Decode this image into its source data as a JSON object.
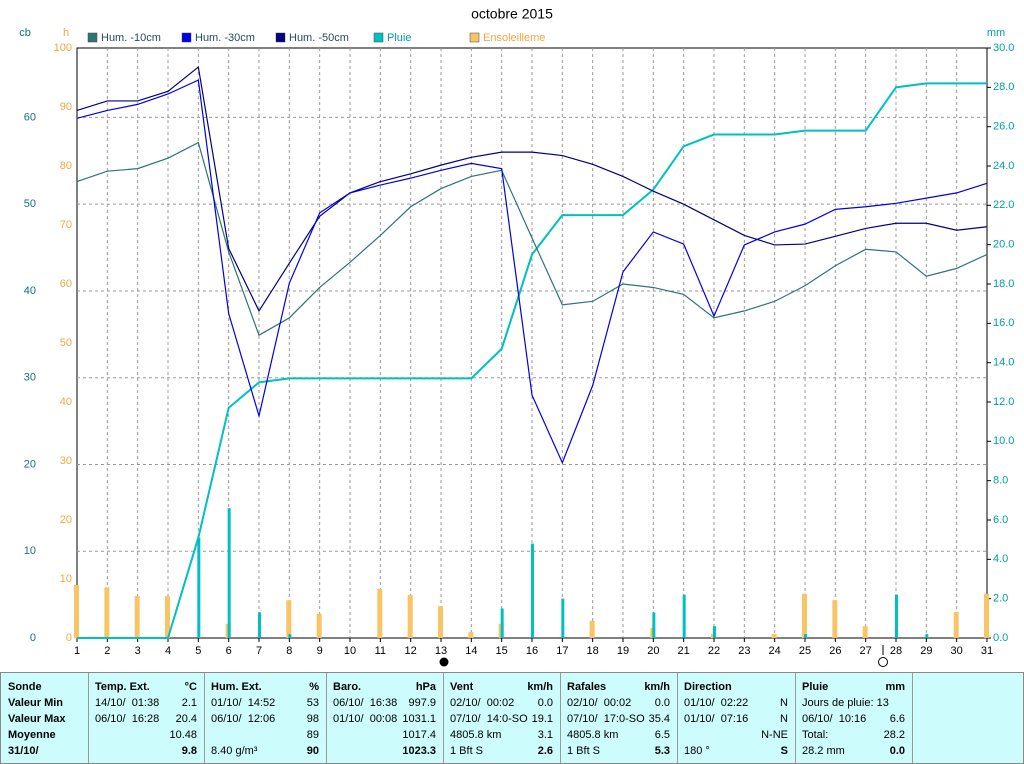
{
  "chart_data": {
    "type": "combo",
    "title": "octobre 2015",
    "categories": [
      "1",
      "2",
      "3",
      "4",
      "5",
      "6",
      "7",
      "8",
      "9",
      "10",
      "11",
      "12",
      "13",
      "14",
      "15",
      "16",
      "17",
      "18",
      "19",
      "20",
      "21",
      "22",
      "23",
      "24",
      "25",
      "26",
      "27",
      "28",
      "29",
      "30",
      "31"
    ],
    "y_label": "cb",
    "ylim": [
      0,
      68
    ],
    "yticks": [
      0,
      10,
      20,
      30,
      40,
      50,
      60
    ],
    "y3_label": "h",
    "y3lim": [
      0,
      100
    ],
    "y3ticks": [
      0,
      10,
      20,
      30,
      40,
      50,
      60,
      70,
      80,
      90,
      100
    ],
    "y2_label": "mm",
    "y2lim": [
      0,
      30
    ],
    "y2ticks": [
      {
        "value": 0,
        "label": "0.0"
      },
      {
        "value": 2,
        "label": "2.0"
      },
      {
        "value": 4,
        "label": "4.0"
      },
      {
        "value": 6,
        "label": "6.0"
      },
      {
        "value": 8,
        "label": "8.0"
      },
      {
        "value": 10,
        "label": "10.0"
      },
      {
        "value": 12,
        "label": "12.0"
      },
      {
        "value": 14,
        "label": "14.0"
      },
      {
        "value": 16,
        "label": "16.0"
      },
      {
        "value": 18,
        "label": "18.0"
      },
      {
        "value": 20,
        "label": "20.0"
      },
      {
        "value": 22,
        "label": "22.0"
      },
      {
        "value": 24,
        "label": "24.0"
      },
      {
        "value": 26,
        "label": "26.0"
      },
      {
        "value": 28,
        "label": "28.0"
      },
      {
        "value": 30,
        "label": "30.0"
      }
    ],
    "grid": true,
    "series": [
      {
        "name": "Hum. -10cm",
        "type": "line",
        "axis": "y",
        "color": "#2f7373",
        "values": [
          52.6,
          53.8,
          54.1,
          55.3,
          57.1,
          44.5,
          34.9,
          36.9,
          40.4,
          43.3,
          46.4,
          49.7,
          51.8,
          53.2,
          53.9,
          46.1,
          38.4,
          38.8,
          40.8,
          40.4,
          39.6,
          36.9,
          37.7,
          38.8,
          40.6,
          42.9,
          44.8,
          44.5,
          41.7,
          42.6,
          44.2
        ]
      },
      {
        "name": "Hum. -30cm",
        "type": "line",
        "axis": "y",
        "color": "#0000e0",
        "values": [
          59.9,
          60.8,
          61.5,
          62.7,
          64.3,
          37.4,
          25.6,
          40.9,
          49.0,
          51.3,
          52.2,
          53.0,
          53.9,
          54.7,
          54.1,
          28.0,
          20.2,
          29.1,
          42.2,
          46.8,
          45.4,
          37.1,
          45.3,
          46.8,
          47.7,
          49.4,
          49.7,
          50.1,
          50.7,
          51.3,
          52.4
        ]
      },
      {
        "name": "Hum. -50cm",
        "type": "line",
        "axis": "y",
        "color": "#000080",
        "values": [
          60.8,
          61.9,
          61.9,
          63.0,
          65.8,
          44.9,
          37.7,
          43.2,
          48.6,
          51.3,
          52.6,
          53.5,
          54.5,
          55.4,
          56.0,
          56.0,
          55.6,
          54.6,
          53.2,
          51.5,
          50.0,
          48.2,
          46.4,
          45.3,
          45.4,
          46.3,
          47.2,
          47.8,
          47.8,
          47.0,
          47.4
        ]
      },
      {
        "name": "Pluie",
        "type": "line",
        "axis": "y2",
        "color": "#00c0c0",
        "values": [
          0,
          0,
          0,
          0,
          5.1,
          11.7,
          13.0,
          13.2,
          13.2,
          13.2,
          13.2,
          13.2,
          13.2,
          13.2,
          14.7,
          19.5,
          21.5,
          21.5,
          21.5,
          22.8,
          25.0,
          25.6,
          25.6,
          25.6,
          25.8,
          25.8,
          25.8,
          28.0,
          28.2,
          28.2,
          28.2
        ],
        "daily_values": [
          0,
          0,
          0,
          0,
          5.1,
          6.6,
          1.3,
          0.2,
          0,
          0,
          0,
          0,
          0,
          0,
          1.5,
          4.8,
          2.0,
          0,
          0,
          1.3,
          2.2,
          0.6,
          0,
          0,
          0.2,
          0,
          0,
          2.2,
          0.2,
          0,
          0
        ]
      },
      {
        "name": "Ensoleilleme",
        "type": "bar",
        "axis": "y3",
        "color": "#f8c466",
        "values": [
          9.0,
          8.6,
          7.1,
          7.1,
          0,
          2.4,
          0,
          6.4,
          4.1,
          0,
          8.3,
          7.3,
          5.4,
          1.0,
          2.4,
          0,
          0,
          2.9,
          0,
          1.7,
          0,
          0.7,
          0,
          0.7,
          7.5,
          6.4,
          2.0,
          0,
          0,
          4.4,
          7.5
        ]
      }
    ]
  },
  "table": {
    "row_labels": [
      "Sonde",
      "Valeur Min",
      "Valeur Max",
      "Moyenne",
      "31/10/"
    ],
    "columns": [
      {
        "header": "Temp. Ext.",
        "unit": "°C",
        "rows": [
          {
            "left": "14/10/  01:38",
            "right": "2.1"
          },
          {
            "left": "06/10/  16:28",
            "right": "20.4"
          },
          {
            "right": "10.48"
          },
          {
            "right": "9.8"
          }
        ]
      },
      {
        "header": "Hum. Ext.",
        "unit": "%",
        "rows": [
          {
            "left": "01/10/  14:52",
            "right": "53"
          },
          {
            "left": "06/10/  12:06",
            "right": "98"
          },
          {
            "right": "89"
          },
          {
            "left": "8.40 g/m³",
            "right": "90"
          }
        ]
      },
      {
        "header": "Baro.",
        "unit": "hPa",
        "rows": [
          {
            "left": "06/10/  16:38",
            "right": "997.9"
          },
          {
            "left": "01/10/  00:08",
            "right": "1031.1"
          },
          {
            "right": "1017.4"
          },
          {
            "right": "1023.3"
          }
        ]
      },
      {
        "header": "Vent",
        "unit": "km/h",
        "rows": [
          {
            "left": "02/10/  00:02",
            "right": "0.0"
          },
          {
            "left": "07/10/  14:0-SO",
            "right": "19.1"
          },
          {
            "left": "4805.8 km",
            "right": "3.1"
          },
          {
            "left": "1 Bft S",
            "right": "2.6"
          }
        ]
      },
      {
        "header": "Rafales",
        "unit": "km/h",
        "rows": [
          {
            "left": "02/10/  00:02",
            "right": "0.0"
          },
          {
            "left": "07/10/  17:0-SO",
            "right": "35.4"
          },
          {
            "left": "4805.8 km",
            "right": "6.5"
          },
          {
            "left": "1 Bft S",
            "right": "5.3"
          }
        ]
      },
      {
        "header": "Direction",
        "rows": [
          {
            "left": "01/10/  02:22",
            "right": "N"
          },
          {
            "left": "01/10/  07:16",
            "right": "N"
          },
          {
            "right": "N-NE"
          },
          {
            "left": "180 °",
            "right": "S"
          }
        ]
      },
      {
        "header": "Pluie",
        "unit": "mm",
        "rows": [
          {
            "left": "Jours de pluie: 13"
          },
          {
            "left": "06/10/  10:16",
            "right": "6.6"
          },
          {
            "left": "Total:",
            "right": "28.2"
          },
          {
            "left": "28.2 mm",
            "right": "0.0"
          }
        ]
      }
    ]
  }
}
